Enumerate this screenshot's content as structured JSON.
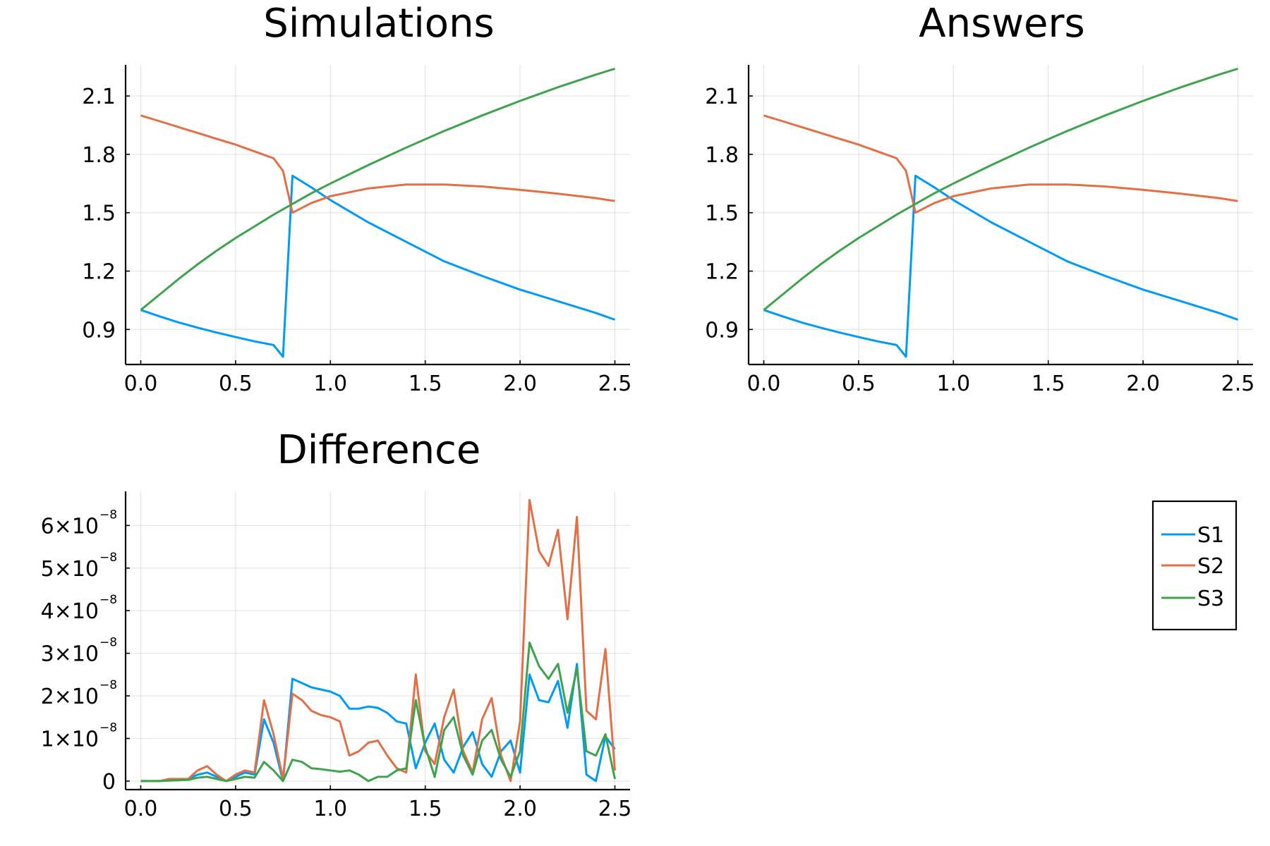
{
  "colors": {
    "S1": "#009af9",
    "S2": "#e26f46",
    "S3": "#3da44d"
  },
  "legend": {
    "placement": "right",
    "entries": [
      "S1",
      "S2",
      "S3"
    ]
  },
  "chart_data": [
    {
      "type": "line",
      "title": "Simulations",
      "xlim": [
        -0.08,
        2.58
      ],
      "ylim": [
        0.72,
        2.26
      ],
      "x_ticks": [
        0.0,
        0.5,
        1.0,
        1.5,
        2.0,
        2.5
      ],
      "x_tick_labels": [
        "0.0",
        "0.5",
        "1.0",
        "1.5",
        "2.0",
        "2.5"
      ],
      "y_ticks": [
        0.9,
        1.2,
        1.5,
        1.8,
        2.1
      ],
      "y_tick_labels": [
        "0.9",
        "1.2",
        "1.5",
        "1.8",
        "2.1"
      ],
      "grid": true,
      "series": [
        {
          "name": "S1",
          "x": [
            0,
            0.1,
            0.2,
            0.3,
            0.4,
            0.5,
            0.6,
            0.7,
            0.75,
            0.8,
            0.9,
            1.0,
            1.2,
            1.4,
            1.6,
            1.8,
            2.0,
            2.2,
            2.4,
            2.5
          ],
          "y": [
            1.0,
            0.967,
            0.936,
            0.909,
            0.884,
            0.861,
            0.839,
            0.82,
            0.76,
            1.69,
            1.63,
            1.565,
            1.45,
            1.35,
            1.25,
            1.175,
            1.105,
            1.045,
            0.985,
            0.95
          ]
        },
        {
          "name": "S2",
          "x": [
            0,
            0.1,
            0.2,
            0.3,
            0.4,
            0.5,
            0.6,
            0.7,
            0.75,
            0.8,
            0.9,
            1.0,
            1.2,
            1.4,
            1.6,
            1.8,
            2.0,
            2.2,
            2.4,
            2.5
          ],
          "y": [
            2.0,
            1.97,
            1.94,
            1.91,
            1.88,
            1.85,
            1.815,
            1.78,
            1.715,
            1.5,
            1.55,
            1.585,
            1.625,
            1.645,
            1.645,
            1.635,
            1.618,
            1.598,
            1.575,
            1.56
          ]
        },
        {
          "name": "S3",
          "x": [
            0,
            0.1,
            0.2,
            0.3,
            0.4,
            0.5,
            0.6,
            0.7,
            0.8,
            0.9,
            1.0,
            1.2,
            1.4,
            1.6,
            1.8,
            2.0,
            2.2,
            2.4,
            2.5
          ],
          "y": [
            1.0,
            1.08,
            1.16,
            1.235,
            1.305,
            1.37,
            1.43,
            1.49,
            1.545,
            1.6,
            1.65,
            1.745,
            1.835,
            1.92,
            2.0,
            2.075,
            2.145,
            2.21,
            2.24
          ]
        }
      ]
    },
    {
      "type": "line",
      "title": "Answers",
      "xlim": [
        -0.08,
        2.58
      ],
      "ylim": [
        0.72,
        2.26
      ],
      "x_ticks": [
        0.0,
        0.5,
        1.0,
        1.5,
        2.0,
        2.5
      ],
      "x_tick_labels": [
        "0.0",
        "0.5",
        "1.0",
        "1.5",
        "2.0",
        "2.5"
      ],
      "y_ticks": [
        0.9,
        1.2,
        1.5,
        1.8,
        2.1
      ],
      "y_tick_labels": [
        "0.9",
        "1.2",
        "1.5",
        "1.8",
        "2.1"
      ],
      "grid": true,
      "series": [
        {
          "name": "S1",
          "x": [
            0,
            0.1,
            0.2,
            0.3,
            0.4,
            0.5,
            0.6,
            0.7,
            0.75,
            0.8,
            0.9,
            1.0,
            1.2,
            1.4,
            1.6,
            1.8,
            2.0,
            2.2,
            2.4,
            2.5
          ],
          "y": [
            1.0,
            0.967,
            0.936,
            0.909,
            0.884,
            0.861,
            0.839,
            0.82,
            0.76,
            1.69,
            1.63,
            1.565,
            1.45,
            1.35,
            1.25,
            1.175,
            1.105,
            1.045,
            0.985,
            0.95
          ]
        },
        {
          "name": "S2",
          "x": [
            0,
            0.1,
            0.2,
            0.3,
            0.4,
            0.5,
            0.6,
            0.7,
            0.75,
            0.8,
            0.9,
            1.0,
            1.2,
            1.4,
            1.6,
            1.8,
            2.0,
            2.2,
            2.4,
            2.5
          ],
          "y": [
            2.0,
            1.97,
            1.94,
            1.91,
            1.88,
            1.85,
            1.815,
            1.78,
            1.715,
            1.5,
            1.55,
            1.585,
            1.625,
            1.645,
            1.645,
            1.635,
            1.618,
            1.598,
            1.575,
            1.56
          ]
        },
        {
          "name": "S3",
          "x": [
            0,
            0.1,
            0.2,
            0.3,
            0.4,
            0.5,
            0.6,
            0.7,
            0.8,
            0.9,
            1.0,
            1.2,
            1.4,
            1.6,
            1.8,
            2.0,
            2.2,
            2.4,
            2.5
          ],
          "y": [
            1.0,
            1.08,
            1.16,
            1.235,
            1.305,
            1.37,
            1.43,
            1.49,
            1.545,
            1.6,
            1.65,
            1.745,
            1.835,
            1.92,
            2.0,
            2.075,
            2.145,
            2.21,
            2.24
          ]
        }
      ]
    },
    {
      "type": "line",
      "title": "Difference",
      "xlim": [
        -0.08,
        2.58
      ],
      "ylim": [
        -0.2,
        6.8
      ],
      "y_unit_exponent": "−8",
      "x_ticks": [
        0.0,
        0.5,
        1.0,
        1.5,
        2.0,
        2.5
      ],
      "x_tick_labels": [
        "0.0",
        "0.5",
        "1.0",
        "1.5",
        "2.0",
        "2.5"
      ],
      "y_ticks": [
        0,
        1,
        2,
        3,
        4,
        5,
        6
      ],
      "y_tick_labels": [
        "0",
        "1×10",
        "2×10",
        "3×10",
        "4×10",
        "5×10",
        "6×10"
      ],
      "grid": true,
      "x": [
        0,
        0.05,
        0.1,
        0.15,
        0.2,
        0.25,
        0.3,
        0.35,
        0.4,
        0.45,
        0.5,
        0.55,
        0.6,
        0.65,
        0.7,
        0.75,
        0.8,
        0.85,
        0.9,
        0.95,
        1.0,
        1.05,
        1.1,
        1.15,
        1.2,
        1.25,
        1.3,
        1.35,
        1.4,
        1.45,
        1.5,
        1.55,
        1.6,
        1.65,
        1.7,
        1.75,
        1.8,
        1.85,
        1.9,
        1.95,
        2.0,
        2.05,
        2.1,
        2.15,
        2.2,
        2.25,
        2.3,
        2.35,
        2.4,
        2.45,
        2.5
      ],
      "series": [
        {
          "name": "S1",
          "y": [
            0,
            0,
            0,
            0.02,
            0.03,
            0.05,
            0.15,
            0.2,
            0.1,
            0,
            0.1,
            0.2,
            0.15,
            1.45,
            0.9,
            0,
            2.4,
            2.3,
            2.2,
            2.15,
            2.1,
            2.0,
            1.7,
            1.7,
            1.75,
            1.72,
            1.6,
            1.4,
            1.35,
            0.3,
            0.9,
            1.35,
            0.5,
            0.2,
            0.8,
            1.15,
            0.4,
            0.1,
            0.7,
            0.95,
            0.2,
            2.5,
            1.9,
            1.85,
            2.35,
            1.25,
            2.75,
            0.15,
            0,
            1.05,
            0.75
          ]
        },
        {
          "name": "S2",
          "y": [
            0,
            0,
            0,
            0.05,
            0.05,
            0.05,
            0.25,
            0.35,
            0.15,
            0,
            0.15,
            0.25,
            0.2,
            1.9,
            1.1,
            0.05,
            2.05,
            1.9,
            1.65,
            1.55,
            1.5,
            1.4,
            0.6,
            0.7,
            0.9,
            0.95,
            0.6,
            0.3,
            0.2,
            2.5,
            0.7,
            0.4,
            1.5,
            2.15,
            0.7,
            0.2,
            1.45,
            1.95,
            0.6,
            0,
            1.4,
            6.6,
            5.4,
            5.05,
            5.9,
            3.8,
            6.2,
            1.65,
            1.45,
            3.1,
            0.25
          ]
        },
        {
          "name": "S3",
          "y": [
            0,
            0,
            0,
            0.01,
            0.02,
            0.03,
            0.08,
            0.1,
            0.05,
            0,
            0.05,
            0.1,
            0.08,
            0.45,
            0.25,
            0,
            0.5,
            0.45,
            0.3,
            0.28,
            0.25,
            0.22,
            0.25,
            0.15,
            0,
            0.1,
            0.1,
            0.25,
            0.3,
            1.9,
            0.8,
            0.1,
            1.2,
            1.5,
            0.6,
            0.15,
            0.95,
            1.2,
            0.5,
            0.1,
            0.7,
            3.25,
            2.7,
            2.4,
            2.75,
            1.6,
            2.65,
            0.7,
            0.6,
            1.1,
            0.05
          ]
        }
      ]
    }
  ]
}
